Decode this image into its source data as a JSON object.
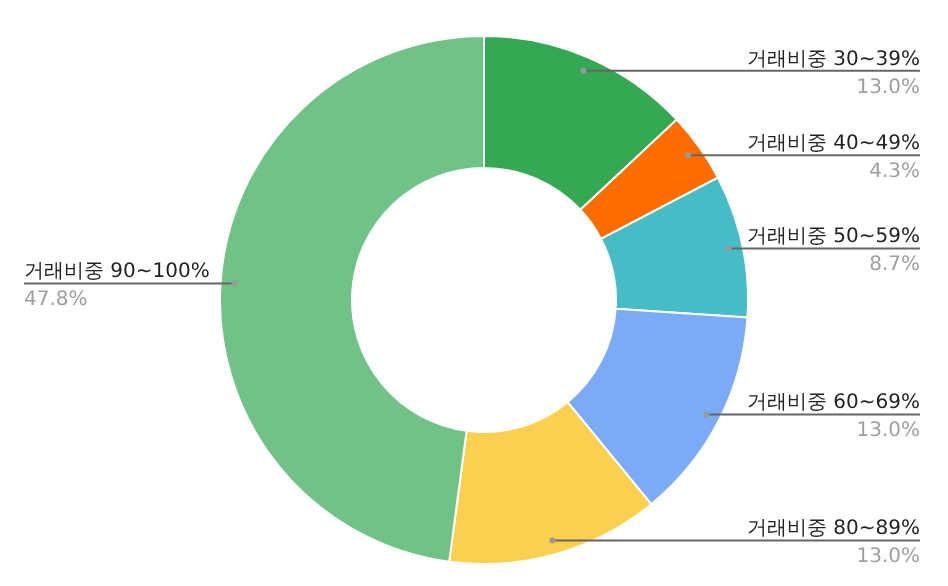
{
  "chart_data": {
    "type": "donut",
    "categories": [
      "거래비중 30~39%",
      "거래비중 40~49%",
      "거래비중 50~59%",
      "거래비중 60~69%",
      "거래비중 80~89%",
      "거래비중 90~100%"
    ],
    "values": [
      13.0,
      4.3,
      8.7,
      13.0,
      13.0,
      47.8
    ],
    "value_labels": [
      "13.0%",
      "4.3%",
      "8.7%",
      "13.0%",
      "13.0%",
      "47.8%"
    ],
    "colors": [
      "#34a853",
      "#ff6d01",
      "#46bdc6",
      "#7baaf7",
      "#fcd04f",
      "#71c287"
    ]
  }
}
